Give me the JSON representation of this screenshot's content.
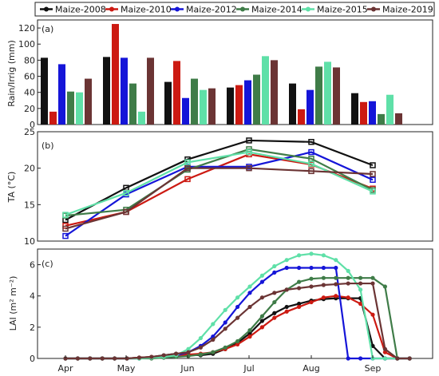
{
  "legend": [
    {
      "name": "Maize-2008",
      "color": "#111111"
    },
    {
      "name": "Maize-2010",
      "color": "#cc1a12"
    },
    {
      "name": "Maize-2012",
      "color": "#1515d8"
    },
    {
      "name": "Maize-2014",
      "color": "#3f7c48"
    },
    {
      "name": "Maize-2015",
      "color": "#5fe0a8"
    },
    {
      "name": "Maize-2019",
      "color": "#6b3434"
    }
  ],
  "months": [
    "Apr",
    "May",
    "Jun",
    "Jul",
    "Aug",
    "Sep"
  ],
  "chart_data": [
    {
      "type": "bar",
      "panel_label": "(a)",
      "ylabel": "Rain/Irrig (mm)",
      "ylim": [
        0,
        130
      ],
      "yticks": [
        0,
        20,
        40,
        60,
        80,
        100,
        120
      ],
      "categories": [
        "Apr",
        "May",
        "Jun",
        "Jul",
        "Aug",
        "Sep"
      ],
      "series": [
        {
          "name": "Maize-2008",
          "values": [
            83,
            84,
            53,
            46,
            51,
            39
          ]
        },
        {
          "name": "Maize-2010",
          "values": [
            16,
            125,
            79,
            49,
            19,
            28
          ]
        },
        {
          "name": "Maize-2012",
          "values": [
            75,
            83,
            33,
            55,
            43,
            29
          ]
        },
        {
          "name": "Maize-2014",
          "values": [
            41,
            51,
            57,
            62,
            72,
            13
          ]
        },
        {
          "name": "Maize-2015",
          "values": [
            40,
            16,
            43,
            85,
            78,
            37
          ]
        },
        {
          "name": "Maize-2019",
          "values": [
            57,
            83,
            45,
            80,
            71,
            14
          ]
        }
      ]
    },
    {
      "type": "line",
      "panel_label": "(b)",
      "ylabel": "TA (°C)",
      "ylim": [
        10,
        25
      ],
      "yticks": [
        10,
        15,
        20,
        25
      ],
      "categories": [
        "Apr",
        "May",
        "Jun",
        "Jul",
        "Aug",
        "Sep"
      ],
      "series": [
        {
          "name": "Maize-2008",
          "values": [
            12.9,
            17.3,
            21.2,
            23.8,
            23.6,
            20.4
          ]
        },
        {
          "name": "Maize-2010",
          "values": [
            12.1,
            14.0,
            18.5,
            21.9,
            20.5,
            17.2
          ]
        },
        {
          "name": "Maize-2012",
          "values": [
            10.7,
            16.4,
            20.2,
            20.2,
            22.2,
            18.4
          ]
        },
        {
          "name": "Maize-2014",
          "values": [
            13.5,
            14.3,
            19.8,
            22.6,
            21.3,
            17.0
          ]
        },
        {
          "name": "Maize-2015",
          "values": [
            13.6,
            16.6,
            20.8,
            22.2,
            20.6,
            16.8
          ]
        },
        {
          "name": "Maize-2019",
          "values": [
            11.7,
            14.0,
            20.0,
            20.0,
            19.6,
            19.2
          ]
        }
      ]
    },
    {
      "type": "line",
      "panel_label": "(c)",
      "ylabel": "LAI (m² m⁻²)",
      "ylim": [
        0,
        7
      ],
      "yticks": [
        0,
        2,
        4,
        6
      ],
      "x_ticks": [
        "Apr",
        "May",
        "Jun",
        "Jul",
        "Aug",
        "Sep"
      ],
      "x_unit": "month index (Apr=0, Sep=5)",
      "series": [
        {
          "name": "Maize-2008",
          "x": [
            0,
            0.2,
            0.4,
            0.6,
            0.8,
            1.0,
            1.2,
            1.4,
            1.6,
            1.8,
            2.0,
            2.2,
            2.4,
            2.6,
            2.8,
            3.0,
            3.2,
            3.4,
            3.6,
            3.8,
            4.0,
            4.2,
            4.4,
            4.6,
            4.8,
            5.0,
            5.2,
            5.4,
            5.6
          ],
          "values": [
            0,
            0,
            0,
            0,
            0,
            0,
            0.05,
            0.1,
            0.2,
            0.3,
            0.25,
            0.2,
            0.3,
            0.6,
            1.0,
            1.6,
            2.4,
            2.9,
            3.3,
            3.5,
            3.7,
            3.8,
            3.85,
            3.85,
            3.85,
            0.8,
            0,
            0,
            0
          ]
        },
        {
          "name": "Maize-2010",
          "x": [
            0,
            0.2,
            0.4,
            0.6,
            0.8,
            1.0,
            1.2,
            1.4,
            1.6,
            1.8,
            2.0,
            2.2,
            2.4,
            2.6,
            2.8,
            3.0,
            3.2,
            3.4,
            3.6,
            3.8,
            4.0,
            4.2,
            4.4,
            4.6,
            4.8,
            5.0,
            5.2,
            5.4,
            5.6
          ],
          "values": [
            0,
            0,
            0,
            0,
            0,
            0,
            0.05,
            0.1,
            0.15,
            0.2,
            0.25,
            0.3,
            0.4,
            0.6,
            0.9,
            1.4,
            2.0,
            2.6,
            3.0,
            3.3,
            3.6,
            3.9,
            4.0,
            3.9,
            3.5,
            2.8,
            0.4,
            0,
            0
          ]
        },
        {
          "name": "Maize-2012",
          "x": [
            0,
            0.2,
            0.4,
            0.6,
            0.8,
            1.0,
            1.2,
            1.4,
            1.6,
            1.8,
            2.0,
            2.2,
            2.4,
            2.6,
            2.8,
            3.0,
            3.2,
            3.4,
            3.6,
            3.8,
            4.0,
            4.2,
            4.4,
            4.6,
            4.8,
            5.0,
            5.2,
            5.4,
            5.6
          ],
          "values": [
            0,
            0,
            0,
            0,
            0,
            0,
            0,
            0.05,
            0.1,
            0.2,
            0.4,
            0.8,
            1.4,
            2.3,
            3.3,
            4.2,
            4.9,
            5.5,
            5.8,
            5.8,
            5.8,
            5.8,
            5.8,
            0,
            0,
            0,
            0,
            0,
            0
          ]
        },
        {
          "name": "Maize-2014",
          "x": [
            0,
            0.2,
            0.4,
            0.6,
            0.8,
            1.0,
            1.2,
            1.4,
            1.6,
            1.8,
            2.0,
            2.2,
            2.4,
            2.6,
            2.8,
            3.0,
            3.2,
            3.4,
            3.6,
            3.8,
            4.0,
            4.2,
            4.4,
            4.6,
            4.8,
            5.0,
            5.2,
            5.4,
            5.6
          ],
          "values": [
            0,
            0,
            0,
            0,
            0,
            0,
            0,
            0,
            0.05,
            0.1,
            0.15,
            0.25,
            0.4,
            0.7,
            1.1,
            1.8,
            2.7,
            3.6,
            4.4,
            4.9,
            5.1,
            5.15,
            5.15,
            5.15,
            5.15,
            5.15,
            4.6,
            0,
            0
          ]
        },
        {
          "name": "Maize-2015",
          "x": [
            0,
            0.2,
            0.4,
            0.6,
            0.8,
            1.0,
            1.2,
            1.4,
            1.6,
            1.8,
            2.0,
            2.2,
            2.4,
            2.6,
            2.8,
            3.0,
            3.2,
            3.4,
            3.6,
            3.8,
            4.0,
            4.2,
            4.4,
            4.6,
            4.8,
            5.0,
            5.2,
            5.4,
            5.6
          ],
          "values": [
            0,
            0,
            0,
            0,
            0,
            0,
            0,
            0.05,
            0.1,
            0.2,
            0.6,
            1.3,
            2.2,
            3.1,
            3.9,
            4.6,
            5.3,
            5.9,
            6.3,
            6.6,
            6.7,
            6.6,
            6.3,
            5.6,
            4.4,
            0,
            0,
            0,
            0
          ]
        },
        {
          "name": "Maize-2019",
          "x": [
            0,
            0.2,
            0.4,
            0.6,
            0.8,
            1.0,
            1.2,
            1.4,
            1.6,
            1.8,
            2.0,
            2.2,
            2.4,
            2.6,
            2.8,
            3.0,
            3.2,
            3.4,
            3.6,
            3.8,
            4.0,
            4.2,
            4.4,
            4.6,
            4.8,
            5.0,
            5.2,
            5.4,
            5.6
          ],
          "values": [
            0,
            0,
            0,
            0,
            0,
            0,
            0.05,
            0.1,
            0.2,
            0.3,
            0.4,
            0.7,
            1.2,
            1.9,
            2.6,
            3.3,
            3.9,
            4.2,
            4.4,
            4.5,
            4.6,
            4.7,
            4.75,
            4.8,
            4.8,
            4.8,
            0.6,
            0,
            0
          ]
        }
      ]
    }
  ]
}
